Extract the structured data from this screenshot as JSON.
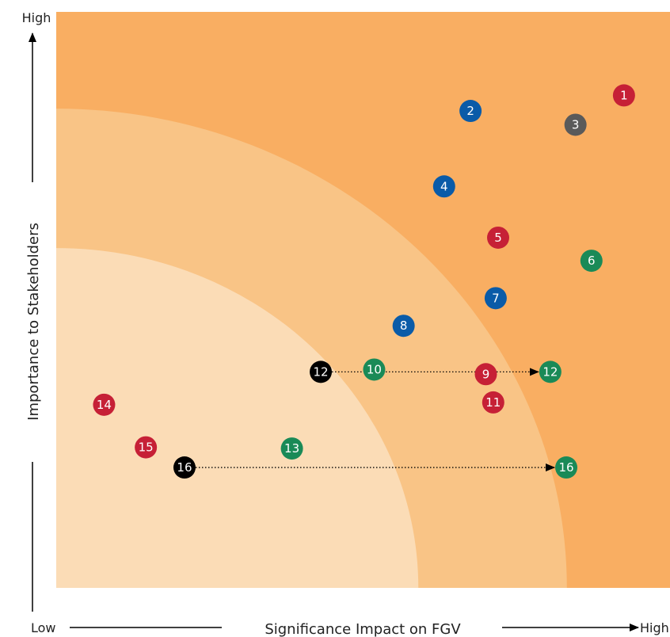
{
  "chart_data": {
    "type": "scatter",
    "title": "",
    "xlabel": "Significance Impact on FGV",
    "ylabel": "Importance to Stakeholders",
    "x_low_label": "Low",
    "x_high_label": "High",
    "y_high_label": "High",
    "xlim": [
      0,
      100
    ],
    "ylim": [
      0,
      100
    ],
    "colors": {
      "red": "#c62036",
      "blue": "#0a5ba8",
      "grey": "#5a5a5a",
      "green": "#1a8a57",
      "black": "#000000",
      "zone_high": "#f9ae62",
      "zone_mid": "#f9c486",
      "zone_low": "#fbdcb6"
    },
    "points": [
      {
        "label": "1",
        "x": 92.5,
        "y": 85.5,
        "color": "red"
      },
      {
        "label": "2",
        "x": 67.5,
        "y": 82.8,
        "color": "blue"
      },
      {
        "label": "3",
        "x": 84.6,
        "y": 80.4,
        "color": "grey"
      },
      {
        "label": "4",
        "x": 63.2,
        "y": 69.7,
        "color": "blue"
      },
      {
        "label": "5",
        "x": 72.0,
        "y": 60.8,
        "color": "red"
      },
      {
        "label": "6",
        "x": 87.2,
        "y": 56.8,
        "color": "green"
      },
      {
        "label": "7",
        "x": 71.6,
        "y": 50.3,
        "color": "blue"
      },
      {
        "label": "8",
        "x": 56.6,
        "y": 45.5,
        "color": "blue"
      },
      {
        "label": "12",
        "x": 43.1,
        "y": 37.5,
        "color": "black"
      },
      {
        "label": "10",
        "x": 51.8,
        "y": 37.9,
        "color": "green"
      },
      {
        "label": "12",
        "x": 80.5,
        "y": 37.5,
        "color": "green"
      },
      {
        "label": "9",
        "x": 70.0,
        "y": 37.1,
        "color": "red"
      },
      {
        "label": "11",
        "x": 71.2,
        "y": 32.2,
        "color": "red"
      },
      {
        "label": "14",
        "x": 7.8,
        "y": 31.8,
        "color": "red"
      },
      {
        "label": "15",
        "x": 14.6,
        "y": 24.4,
        "color": "red"
      },
      {
        "label": "13",
        "x": 38.4,
        "y": 24.2,
        "color": "green"
      },
      {
        "label": "16",
        "x": 20.9,
        "y": 20.9,
        "color": "black"
      },
      {
        "label": "16",
        "x": 83.1,
        "y": 20.9,
        "color": "green"
      }
    ],
    "arrows": [
      {
        "from": [
          43.1,
          37.5
        ],
        "to": [
          80.5,
          37.5
        ]
      },
      {
        "from": [
          20.9,
          20.9
        ],
        "to": [
          83.1,
          20.9
        ]
      }
    ],
    "zones": [
      {
        "name": "high",
        "radius": 100
      },
      {
        "name": "mid",
        "radius": 83.2
      },
      {
        "name": "low",
        "radius": 59.0
      }
    ]
  }
}
